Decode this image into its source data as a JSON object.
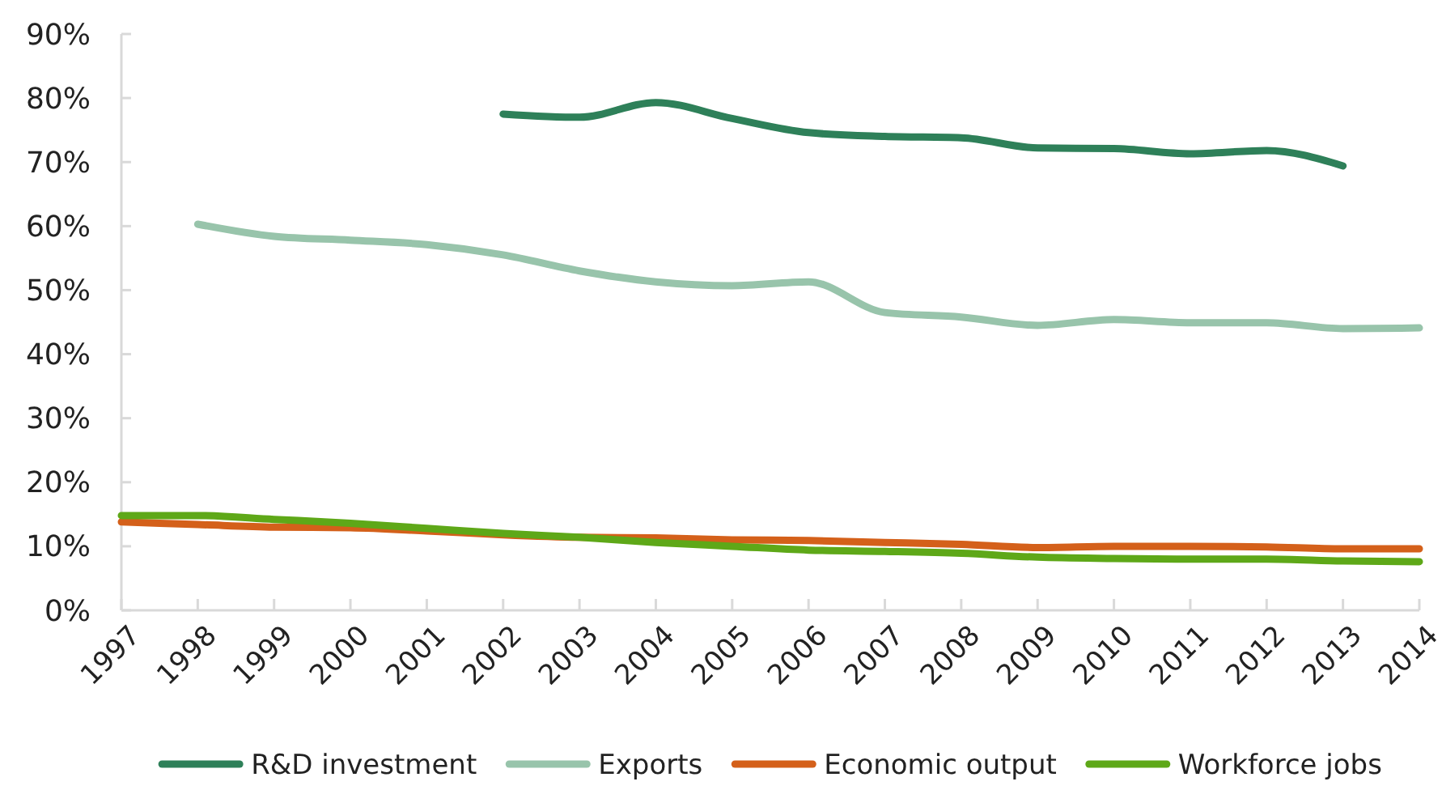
{
  "chart_data": {
    "type": "line",
    "categories": [
      "1997",
      "1998",
      "1999",
      "2000",
      "2001",
      "2002",
      "2003",
      "2004",
      "2005",
      "2006",
      "2007",
      "2008",
      "2009",
      "2010",
      "2011",
      "2012",
      "2013",
      "2014"
    ],
    "ylim": [
      0,
      90
    ],
    "yticks": [
      {
        "value": 0,
        "label": "0%"
      },
      {
        "value": 10,
        "label": "10%"
      },
      {
        "value": 20,
        "label": "20%"
      },
      {
        "value": 30,
        "label": "30%"
      },
      {
        "value": 40,
        "label": "40%"
      },
      {
        "value": 50,
        "label": "50%"
      },
      {
        "value": 60,
        "label": "60%"
      },
      {
        "value": 70,
        "label": "70%"
      },
      {
        "value": 80,
        "label": "80%"
      },
      {
        "value": 90,
        "label": "90%"
      }
    ],
    "legend": "bottom",
    "series": [
      {
        "name": "R&D investment",
        "color": "#2e8059",
        "values": [
          null,
          null,
          null,
          null,
          null,
          77.5,
          77.0,
          79.3,
          76.8,
          74.6,
          74.0,
          73.8,
          72.2,
          72.1,
          71.3,
          71.8,
          69.4,
          null
        ]
      },
      {
        "name": "Exports",
        "color": "#98c4ab",
        "values": [
          null,
          60.3,
          58.4,
          57.8,
          57.1,
          55.5,
          53.0,
          51.3,
          50.7,
          51.3,
          46.5,
          45.8,
          44.5,
          45.4,
          44.9,
          44.9,
          44.0,
          44.1
        ]
      },
      {
        "name": "Economic output",
        "color": "#d4601a",
        "values": [
          13.8,
          13.4,
          13.0,
          12.9,
          12.4,
          11.8,
          11.4,
          11.3,
          11.0,
          10.9,
          10.6,
          10.3,
          9.8,
          10.0,
          10.0,
          9.9,
          9.6,
          9.6
        ]
      },
      {
        "name": "Workforce jobs",
        "color": "#5ea818",
        "values": [
          14.8,
          14.8,
          14.2,
          13.6,
          12.8,
          12.0,
          11.4,
          10.6,
          10.0,
          9.4,
          9.2,
          8.9,
          8.3,
          8.1,
          8.0,
          8.0,
          7.7,
          7.6
        ]
      }
    ]
  }
}
